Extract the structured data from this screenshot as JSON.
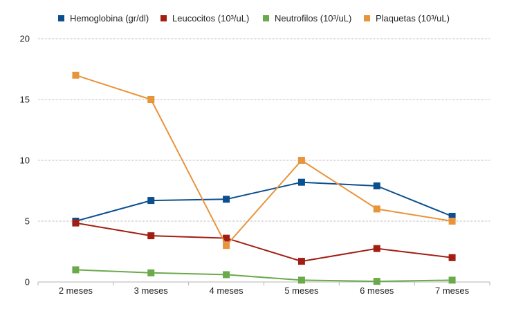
{
  "chart_data": {
    "type": "line",
    "title": "",
    "xlabel": "",
    "ylabel": "",
    "categories": [
      "2 meses",
      "3 meses",
      "4 meses",
      "5 meses",
      "6 meses",
      "7 meses"
    ],
    "ylim": [
      0,
      20
    ],
    "yticks": [
      "0",
      "5",
      "10",
      "15",
      "20"
    ],
    "grid": "horizontal",
    "legend_position": "top",
    "series": [
      {
        "name": "Hemoglobina (gr/dl)",
        "color": "#0b4f8f",
        "values": [
          5.0,
          6.7,
          6.8,
          8.2,
          7.9,
          5.4
        ]
      },
      {
        "name": "Leucocitos (10³/uL)",
        "color": "#a21e12",
        "values": [
          4.85,
          3.8,
          3.6,
          1.7,
          2.75,
          2.0
        ]
      },
      {
        "name": "Neutrofilos (10³/uL)",
        "color": "#6aaa4a",
        "values": [
          1.0,
          0.75,
          0.6,
          0.15,
          0.05,
          0.15
        ]
      },
      {
        "name": "Plaquetas (10³/uL)",
        "color": "#e8943a",
        "values": [
          17.0,
          15.0,
          3.0,
          10.0,
          6.0,
          5.0
        ]
      }
    ]
  }
}
